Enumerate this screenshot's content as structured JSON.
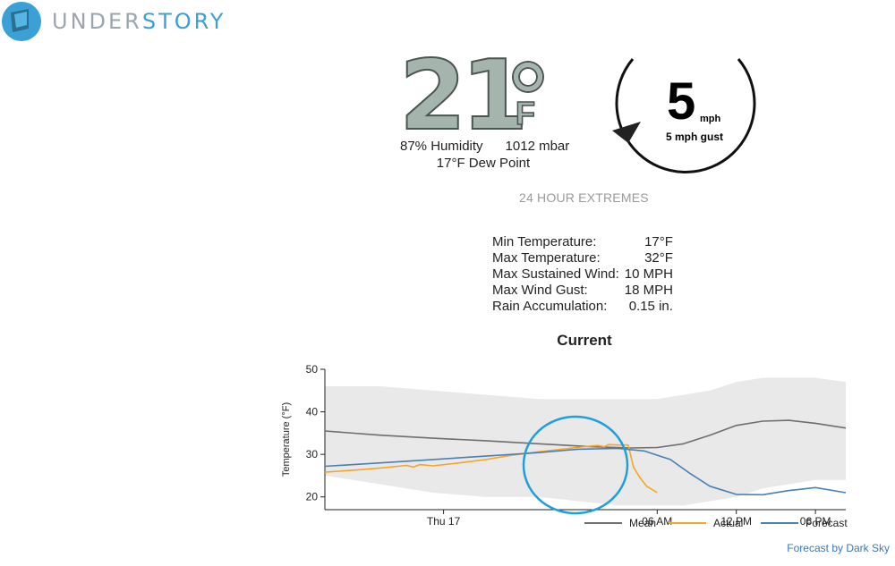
{
  "brand": {
    "part1": "UNDER",
    "part2": "STORY",
    "colors": {
      "accent": "#3aa0d6",
      "muted": "#9aa6ad"
    }
  },
  "current": {
    "temperature": "21",
    "unit": "F",
    "humidity": "87% Humidity",
    "pressure": "1012 mbar",
    "dew_point": "17°F Dew Point"
  },
  "wind": {
    "speed": "5",
    "unit": "mph",
    "gust": "5 mph gust"
  },
  "extremes": {
    "title": "24 HOUR EXTREMES",
    "rows": [
      {
        "label": "Min Temperature:",
        "value": "17°F"
      },
      {
        "label": "Max Temperature:",
        "value": "32°F"
      },
      {
        "label": "Max Sustained Wind:",
        "value": "10 MPH"
      },
      {
        "label": "Max Wind Gust:",
        "value": "18 MPH"
      },
      {
        "label": "Rain Accumulation:",
        "value": "0.15 in."
      }
    ]
  },
  "chart_title": "Current",
  "credit": "Forecast by Dark Sky",
  "chart_data": {
    "type": "line",
    "ylabel": "Temperature (°F)",
    "ylim": [
      17,
      50
    ],
    "yticks": [
      20,
      30,
      40,
      50
    ],
    "x_hours_range": [
      -19.2,
      20.3
    ],
    "xticks": [
      {
        "label": "Thu 17",
        "hour": -10.2
      },
      {
        "label": "06 AM",
        "hour": 6
      },
      {
        "label": "12 PM",
        "hour": 12
      },
      {
        "label": "06 PM",
        "hour": 18
      }
    ],
    "band": {
      "hours": [
        -19.2,
        -15,
        -11,
        -7,
        -3,
        0,
        3,
        6,
        8,
        10,
        12,
        14,
        16,
        18,
        20.3
      ],
      "upper": [
        46,
        46,
        45,
        44,
        43,
        43,
        43,
        43,
        44,
        45,
        47,
        48,
        48,
        48,
        47
      ],
      "lower": [
        25,
        23,
        21,
        20,
        20,
        19,
        18,
        18,
        18,
        19,
        20,
        22,
        23,
        24,
        24
      ]
    },
    "series": [
      {
        "name": "Mean",
        "color": "#6e6e6e",
        "hours": [
          -19.2,
          -15,
          -11,
          -7,
          -3,
          1,
          4,
          6,
          8,
          10,
          12,
          14,
          16,
          18,
          20.3
        ],
        "values": [
          35.5,
          34.5,
          33.8,
          33.2,
          32.5,
          31.8,
          31.5,
          31.6,
          32.5,
          34.5,
          36.8,
          37.8,
          38,
          37.3,
          36.2
        ]
      },
      {
        "name": "Actual",
        "color": "#f5a623",
        "hours": [
          -19.2,
          -17,
          -15,
          -13,
          -12.5,
          -12,
          -11,
          -9,
          -7,
          -5,
          -3,
          -1,
          0.5,
          1.5,
          2,
          2.3,
          3,
          3.8,
          4.2,
          4.7,
          5.2,
          6.0
        ],
        "values": [
          25.8,
          26.3,
          26.8,
          27.4,
          27.0,
          27.6,
          27.3,
          28.0,
          28.8,
          29.8,
          30.6,
          31.3,
          31.8,
          32.1,
          31.8,
          32.3,
          32.2,
          32.2,
          27,
          24.5,
          22.5,
          21
        ]
      },
      {
        "name": "Forecast",
        "color": "#4a7fb5",
        "hours": [
          -19.2,
          -15,
          -11,
          -7,
          -3,
          0,
          3,
          5,
          7,
          8.5,
          10,
          12,
          14,
          16,
          18,
          20.3
        ],
        "values": [
          27.2,
          28.0,
          28.8,
          29.6,
          30.4,
          31.2,
          31.4,
          30.8,
          28.8,
          25.5,
          22.5,
          20.6,
          20.5,
          21.5,
          22.2,
          21.0
        ]
      }
    ],
    "legend_position": "bottom-right"
  }
}
